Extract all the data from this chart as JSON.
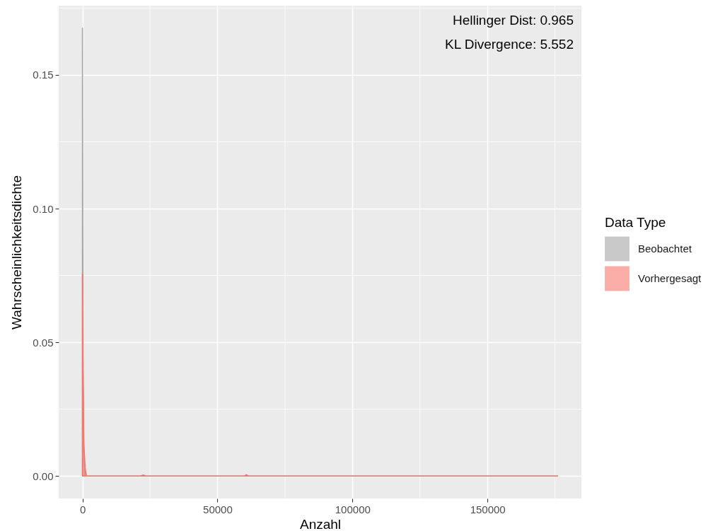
{
  "chart_data": {
    "type": "area",
    "xlabel": "Anzahl",
    "ylabel": "Wahrscheinlichkeitsdichte",
    "legend_title": "Data Type",
    "annotations": [
      "Hellinger Dist: 0.965",
      "KL Divergence: 5.552"
    ],
    "xlim": [
      -8800,
      184800
    ],
    "xticks": [
      0,
      50000,
      100000,
      150000
    ],
    "ylim": [
      -0.0084,
      0.1759
    ],
    "yticks": [
      {
        "value": 0,
        "label": "0.00"
      },
      {
        "value": 0.05,
        "label": "0.05"
      },
      {
        "value": 0.1,
        "label": "0.10"
      },
      {
        "value": 0.15,
        "label": "0.15"
      }
    ],
    "grid": true,
    "legend": "right",
    "series": [
      {
        "name": "Beobachtet",
        "color": "#a6a6a6",
        "x": [
          0,
          100,
          250,
          500,
          1000,
          176000
        ],
        "values": [
          0.1675,
          0.1,
          0.04,
          0.01,
          0,
          0
        ]
      },
      {
        "name": "Vorhergesagt",
        "color": "#f8766d",
        "x": [
          0,
          200,
          500,
          1000,
          1500,
          21500,
          22500,
          23500,
          60000,
          60700,
          61500,
          176000
        ],
        "values": [
          0.0757,
          0.04,
          0.012,
          0.003,
          0,
          0,
          0.0004,
          0,
          0,
          0.0005,
          0,
          0
        ]
      }
    ]
  }
}
